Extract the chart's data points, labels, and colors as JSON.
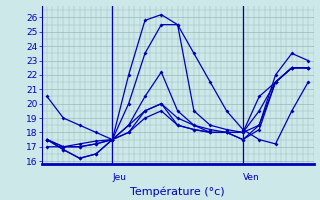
{
  "xlabel": "Température (°c)",
  "bg_color": "#cce8e8",
  "line_color": "#0000bb",
  "grid_color": "#99bbbb",
  "yticks": [
    16,
    17,
    18,
    19,
    20,
    21,
    22,
    23,
    24,
    25,
    26
  ],
  "ylim": [
    15.8,
    26.8
  ],
  "xlim": [
    -1,
    49
  ],
  "jeu_x": 12,
  "ven_x": 36,
  "series": [
    [
      0,
      20.5,
      3,
      19.0,
      6,
      18.5,
      9,
      18.0,
      12,
      17.5,
      15,
      22.0,
      18,
      25.8,
      21,
      26.2,
      24,
      25.5,
      27,
      23.5,
      30,
      21.5,
      33,
      19.5,
      36,
      18.2,
      39,
      17.5,
      42,
      17.2,
      45,
      19.5,
      48,
      21.5
    ],
    [
      0,
      17.0,
      3,
      17.0,
      6,
      17.2,
      9,
      17.4,
      12,
      17.5,
      15,
      20.0,
      18,
      23.5,
      21,
      25.5,
      24,
      25.5,
      27,
      19.5,
      30,
      18.5,
      33,
      18.2,
      36,
      18.0,
      39,
      18.5,
      42,
      21.5,
      45,
      22.5,
      48,
      22.5
    ],
    [
      0,
      17.5,
      3,
      16.8,
      6,
      16.2,
      9,
      16.5,
      12,
      17.5,
      15,
      18.5,
      18,
      20.5,
      21,
      22.2,
      24,
      19.5,
      27,
      18.5,
      30,
      18.2,
      33,
      18.0,
      36,
      18.0,
      39,
      19.5,
      42,
      21.5,
      45,
      22.5,
      48,
      22.5
    ],
    [
      0,
      17.5,
      3,
      16.8,
      6,
      16.2,
      9,
      16.5,
      12,
      17.5,
      15,
      18.0,
      18,
      19.5,
      21,
      20.0,
      24,
      18.5,
      27,
      18.2,
      30,
      18.0,
      33,
      18.0,
      36,
      18.0,
      39,
      20.5,
      42,
      21.5,
      45,
      22.5,
      48,
      22.5
    ],
    [
      0,
      17.5,
      3,
      17.0,
      6,
      17.0,
      9,
      17.2,
      12,
      17.5,
      15,
      18.0,
      18,
      19.0,
      21,
      19.5,
      24,
      18.5,
      27,
      18.2,
      30,
      18.0,
      33,
      18.0,
      36,
      17.5,
      39,
      18.2,
      42,
      21.5,
      45,
      22.5,
      48,
      22.5
    ],
    [
      0,
      17.5,
      3,
      17.0,
      6,
      17.0,
      9,
      17.2,
      12,
      17.5,
      15,
      18.5,
      18,
      19.5,
      21,
      20.0,
      24,
      19.0,
      27,
      18.5,
      30,
      18.0,
      33,
      18.0,
      36,
      17.5,
      39,
      18.5,
      42,
      22.0,
      45,
      23.5,
      48,
      23.0
    ]
  ]
}
